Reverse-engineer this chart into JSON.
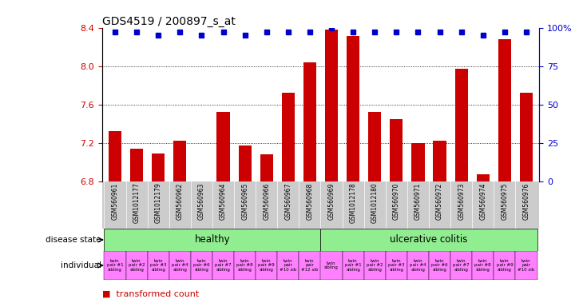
{
  "title": "GDS4519 / 200897_s_at",
  "samples": [
    "GSM560961",
    "GSM1012177",
    "GSM1012179",
    "GSM560962",
    "GSM560963",
    "GSM560964",
    "GSM560965",
    "GSM560966",
    "GSM560967",
    "GSM560968",
    "GSM560969",
    "GSM1012178",
    "GSM1012180",
    "GSM560970",
    "GSM560971",
    "GSM560972",
    "GSM560973",
    "GSM560974",
    "GSM560975",
    "GSM560976"
  ],
  "bar_values": [
    7.32,
    7.14,
    7.09,
    7.22,
    6.8,
    7.52,
    7.17,
    7.08,
    7.72,
    8.04,
    8.38,
    8.31,
    7.52,
    7.45,
    7.2,
    7.22,
    7.97,
    6.87,
    8.28,
    7.72
  ],
  "percentile_values": [
    97,
    97,
    95,
    97,
    95,
    97,
    95,
    97,
    97,
    97,
    100,
    97,
    97,
    97,
    97,
    97,
    97,
    95,
    97,
    97
  ],
  "ylim_left": [
    6.8,
    8.4
  ],
  "yticks_left": [
    6.8,
    7.2,
    7.6,
    8.0,
    8.4
  ],
  "yticks_right": [
    0,
    25,
    50,
    75,
    100
  ],
  "ytick_labels_right": [
    "0",
    "25",
    "50",
    "75",
    "100%"
  ],
  "healthy_count": 10,
  "bar_color": "#CC0000",
  "dot_color": "#0000CC",
  "left_axis_color": "#CC0000",
  "right_axis_color": "#0000CC",
  "healthy_color": "#90EE90",
  "uc_color": "#90EE90",
  "individual_color": "#FF80FF",
  "xticklabel_bg": "#CCCCCC",
  "individual_labels": [
    "twin\npair #1\nsibling",
    "twin\npair #2\nsibling",
    "twin\npair #3\nsibling",
    "twin\npair #4\nsibling",
    "twin\npair #6\nsibling",
    "twin\npair #7\nsibling",
    "twin\npair #8\nsibling",
    "twin\npair #9\nsibling",
    "twin\npair\n#10 sib",
    "twin\npair\n#12 sib",
    "twin\nsibling",
    "twin\npair #1\nsibling",
    "twin\npair #2\nsibling",
    "twin\npair #3\nsibling",
    "twin\npair #4\nsibling",
    "twin\npair #6\nsibling",
    "twin\npair #7\nsibling",
    "twin\npair #8\nsibling",
    "twin\npair #9\nsibling",
    "twin\npair\n#10 sib"
  ]
}
